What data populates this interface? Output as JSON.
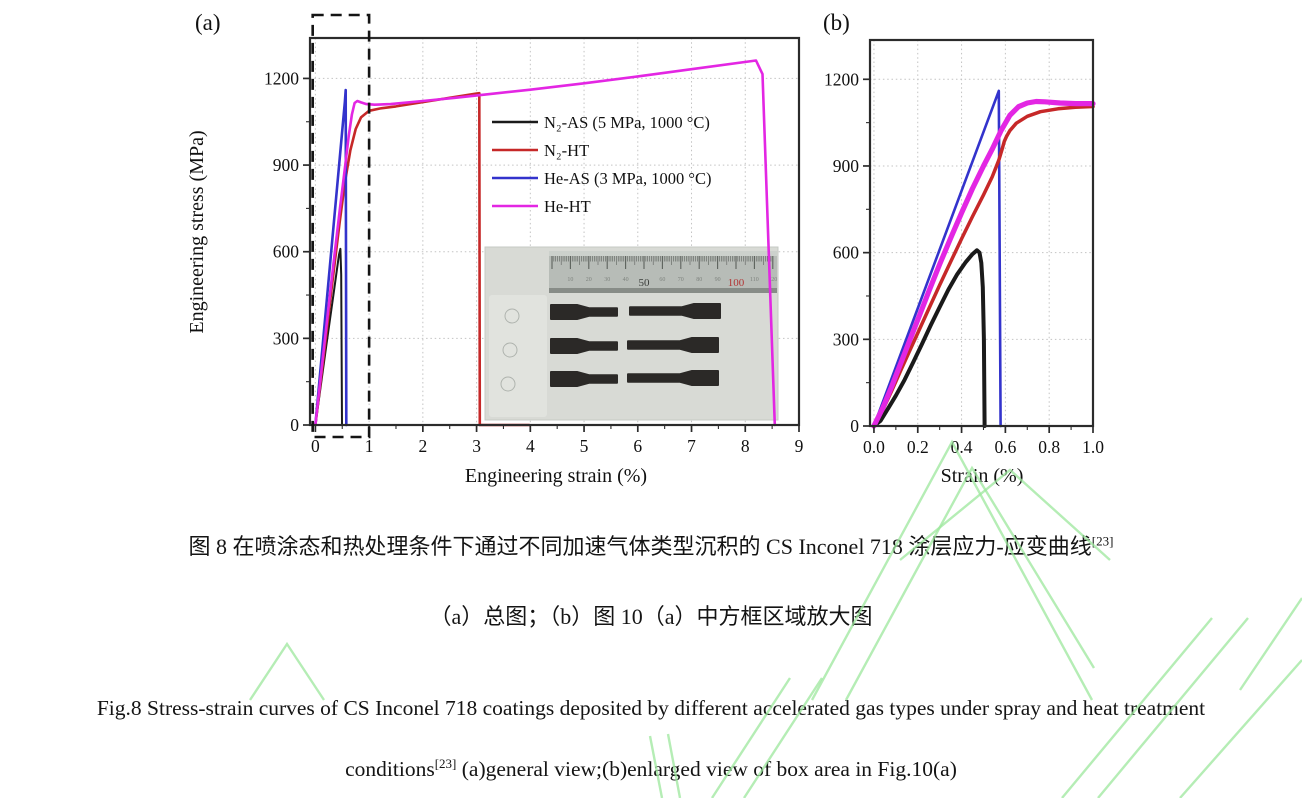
{
  "page": {
    "background": "#ffffff",
    "watermark_color": "#9ce79c"
  },
  "figure": {
    "panel_a_label": "(a)",
    "panel_b_label": "(b)"
  },
  "inset": {
    "ruler_numbers": [
      "10",
      "20",
      "30",
      "40",
      "50",
      "60",
      "70",
      "80",
      "90",
      "100",
      "110",
      "120"
    ],
    "ruler_red_number_color": "#b23434"
  },
  "captions": {
    "zh_line1_prefix": "图 8 在喷涂态和热处理条件下通过不同加速气体类型沉积的 CS Inconel 718 涂层应力-应变曲线",
    "zh_line1_sup": "[23]",
    "zh_line2": "（a）总图；（b）图 10（a）中方框区域放大图",
    "en_line1": "Fig.8 Stress-strain curves of CS Inconel 718 coatings deposited by different accelerated gas types under spray and heat treatment",
    "en_line2_prefix": "conditions",
    "en_line2_sup": "[23]",
    "en_line2_rest": "  (a)general view;(b)enlarged view of box area in Fig.10(a)"
  },
  "chart_data": [
    {
      "type": "line",
      "panel": "a",
      "xlabel": "Engineering strain (%)",
      "ylabel": "Engineering stress (MPa)",
      "xlim": [
        -0.1,
        9.0
      ],
      "ylim": [
        0,
        1340
      ],
      "xticks": [
        0,
        1,
        2,
        3,
        4,
        5,
        6,
        7,
        8,
        9
      ],
      "yticks": [
        0,
        300,
        600,
        900,
        1200
      ],
      "x_minor_step": 0.5,
      "y_minor_step": 150,
      "grid": "dotted",
      "legend_position": "upper-right-inside",
      "box_annotation": {
        "x0": -0.05,
        "x1": 1.0,
        "note": "dashed box region enlarged in panel (b)"
      },
      "series": [
        {
          "id": "n2-as",
          "name": "N₂-AS (5 MPa, 1000 °C)",
          "color": "#1a1a1a",
          "width": 2,
          "points": [
            [
              0,
              0
            ],
            [
              0.2,
              270
            ],
            [
              0.35,
              470
            ],
            [
              0.44,
              590
            ],
            [
              0.465,
              610
            ],
            [
              0.48,
              520
            ],
            [
              0.495,
              0
            ]
          ]
        },
        {
          "id": "n2-ht",
          "name": "N₂-HT",
          "color": "#c62828",
          "width": 2.6,
          "points": [
            [
              0,
              0
            ],
            [
              0.15,
              230
            ],
            [
              0.3,
              470
            ],
            [
              0.45,
              700
            ],
            [
              0.55,
              840
            ],
            [
              0.65,
              950
            ],
            [
              0.75,
              1025
            ],
            [
              0.85,
              1065
            ],
            [
              1.0,
              1088
            ],
            [
              1.2,
              1096
            ],
            [
              1.5,
              1103
            ],
            [
              2.0,
              1118
            ],
            [
              2.5,
              1133
            ],
            [
              3.0,
              1148
            ],
            [
              3.05,
              1149
            ],
            [
              3.06,
              0
            ],
            [
              3.98,
              0
            ]
          ]
        },
        {
          "id": "he-as",
          "name": "He-AS (3 MPa, 1000 °C)",
          "color": "#3333cc",
          "width": 2.6,
          "points": [
            [
              0,
              0
            ],
            [
              0.55,
              1120
            ],
            [
              0.565,
              1160
            ],
            [
              0.575,
              0
            ]
          ]
        },
        {
          "id": "he-ht",
          "name": "He-HT",
          "color": "#e326e3",
          "width": 2.6,
          "points": [
            [
              0,
              0
            ],
            [
              0.15,
              250
            ],
            [
              0.3,
              500
            ],
            [
              0.45,
              740
            ],
            [
              0.55,
              890
            ],
            [
              0.62,
              1000
            ],
            [
              0.68,
              1075
            ],
            [
              0.73,
              1115
            ],
            [
              0.78,
              1122
            ],
            [
              0.85,
              1117
            ],
            [
              0.95,
              1111
            ],
            [
              1.1,
              1109
            ],
            [
              1.4,
              1111
            ],
            [
              2.0,
              1122
            ],
            [
              2.6,
              1133
            ],
            [
              3.2,
              1145
            ],
            [
              4.0,
              1161
            ],
            [
              5.0,
              1183
            ],
            [
              6.0,
              1207
            ],
            [
              7.0,
              1232
            ],
            [
              8.2,
              1262
            ],
            [
              8.32,
              1215
            ],
            [
              8.55,
              0
            ]
          ]
        }
      ]
    },
    {
      "type": "line",
      "panel": "b",
      "xlabel": "Strain (%)",
      "ylabel": "",
      "xlim": [
        -0.018,
        1.0
      ],
      "ylim": [
        0,
        1336
      ],
      "xticks": [
        0,
        0.2,
        0.4,
        0.6,
        0.8,
        1.0
      ],
      "xtick_labels": [
        "0.0",
        "0.2",
        "0.4",
        "0.6",
        "0.8",
        "1.0"
      ],
      "yticks": [
        0,
        300,
        600,
        900,
        1200
      ],
      "x_minor_step": 0.1,
      "y_minor_step": 150,
      "grid": "dotted",
      "series": [
        {
          "id": "n2-as",
          "name": "N₂-AS (5 MPa, 1000 °C)",
          "color": "#1a1a1a",
          "width": 4,
          "points": [
            [
              0,
              0
            ],
            [
              0.03,
              18
            ],
            [
              0.06,
              55
            ],
            [
              0.1,
              105
            ],
            [
              0.14,
              160
            ],
            [
              0.18,
              222
            ],
            [
              0.22,
              285
            ],
            [
              0.26,
              350
            ],
            [
              0.3,
              412
            ],
            [
              0.34,
              472
            ],
            [
              0.38,
              525
            ],
            [
              0.42,
              568
            ],
            [
              0.45,
              595
            ],
            [
              0.47,
              608
            ],
            [
              0.482,
              600
            ],
            [
              0.49,
              565
            ],
            [
              0.497,
              480
            ],
            [
              0.502,
              300
            ],
            [
              0.505,
              0
            ]
          ]
        },
        {
          "id": "he-as",
          "name": "He-AS (3 MPa, 1000 °C)",
          "color": "#3333cc",
          "width": 2.6,
          "points": [
            [
              0,
              0
            ],
            [
              0.57,
              1160
            ],
            [
              0.578,
              0
            ]
          ]
        },
        {
          "id": "n2-ht",
          "name": "N₂-HT",
          "color": "#c62828",
          "width": 3.5,
          "points": [
            [
              0,
              0
            ],
            [
              0.04,
              55
            ],
            [
              0.08,
              120
            ],
            [
              0.12,
              188
            ],
            [
              0.16,
              255
            ],
            [
              0.2,
              322
            ],
            [
              0.25,
              405
            ],
            [
              0.3,
              488
            ],
            [
              0.35,
              568
            ],
            [
              0.4,
              648
            ],
            [
              0.45,
              725
            ],
            [
              0.5,
              800
            ],
            [
              0.54,
              862
            ],
            [
              0.57,
              920
            ],
            [
              0.585,
              958
            ],
            [
              0.595,
              985
            ],
            [
              0.605,
              1002
            ],
            [
              0.62,
              1022
            ],
            [
              0.65,
              1048
            ],
            [
              0.7,
              1072
            ],
            [
              0.76,
              1088
            ],
            [
              0.84,
              1098
            ],
            [
              0.92,
              1103
            ],
            [
              1.0,
              1106
            ]
          ]
        },
        {
          "id": "he-ht",
          "name": "He-HT",
          "color": "#e326e3",
          "width": 5.2,
          "points": [
            [
              0,
              0
            ],
            [
              0.04,
              62
            ],
            [
              0.08,
              135
            ],
            [
              0.12,
              212
            ],
            [
              0.16,
              290
            ],
            [
              0.2,
              368
            ],
            [
              0.25,
              465
            ],
            [
              0.3,
              560
            ],
            [
              0.35,
              650
            ],
            [
              0.4,
              738
            ],
            [
              0.45,
              822
            ],
            [
              0.5,
              900
            ],
            [
              0.54,
              958
            ],
            [
              0.58,
              1022
            ],
            [
              0.62,
              1075
            ],
            [
              0.66,
              1105
            ],
            [
              0.7,
              1118
            ],
            [
              0.74,
              1123
            ],
            [
              0.78,
              1122
            ],
            [
              0.85,
              1118
            ],
            [
              0.92,
              1116
            ],
            [
              1.0,
              1116
            ]
          ]
        }
      ]
    }
  ]
}
